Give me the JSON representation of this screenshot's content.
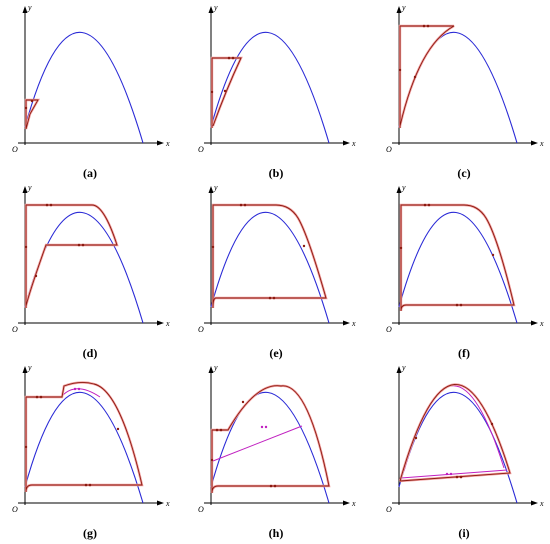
{
  "axes": {
    "x_label": "x",
    "y_label": "y",
    "origin_label": "O"
  },
  "colors": {
    "parabola": "#2a2ad6",
    "orbit": "#8b1a10",
    "orbit_highlight": "#f2a0a0",
    "orbit_alt": "#c020c0",
    "axis": "#000000"
  },
  "panels": [
    {
      "id": "a",
      "label": "(a)"
    },
    {
      "id": "b",
      "label": "(b)"
    },
    {
      "id": "c",
      "label": "(c)"
    },
    {
      "id": "d",
      "label": "(d)"
    },
    {
      "id": "e",
      "label": "(e)"
    },
    {
      "id": "f",
      "label": "(f)"
    },
    {
      "id": "g",
      "label": "(g)"
    },
    {
      "id": "h",
      "label": "(h)"
    },
    {
      "id": "i",
      "label": "(i)"
    }
  ]
}
